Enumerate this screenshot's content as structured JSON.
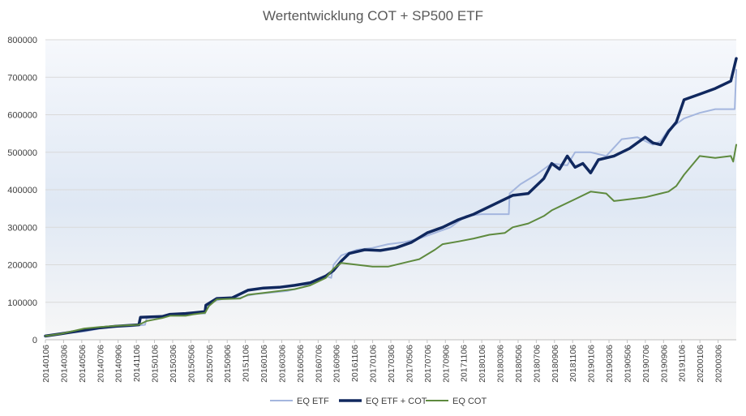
{
  "chart_data": {
    "type": "line",
    "title": "Wertentwicklung COT + SP500 ETF",
    "xlabel": "",
    "ylabel": "",
    "ylim": [
      0,
      800000
    ],
    "yticks": [
      "0",
      "100000",
      "200000",
      "300000",
      "400000",
      "500000",
      "600000",
      "700000",
      "800000"
    ],
    "xticks": [
      "20140106",
      "20140306",
      "20140506",
      "20140706",
      "20140906",
      "20141106",
      "20150106",
      "20150306",
      "20150506",
      "20150706",
      "20150906",
      "20151106",
      "20160106",
      "20160306",
      "20160506",
      "20160706",
      "20160906",
      "20161106",
      "20170106",
      "20170306",
      "20170506",
      "20170706",
      "20170906",
      "20171106",
      "20180106",
      "20180306",
      "20180506",
      "20180706",
      "20180906",
      "20181106",
      "20190106",
      "20190306",
      "20190506",
      "20190706",
      "20190906",
      "20191106",
      "20200106",
      "20200306"
    ],
    "grid": true,
    "legend": "bottom",
    "series": [
      {
        "name": "EQ ETF",
        "color": "#a4b6de",
        "width": 2,
        "points": [
          [
            0,
            10000
          ],
          [
            2,
            16000
          ],
          [
            5,
            22000
          ],
          [
            7,
            30000
          ],
          [
            9,
            34000
          ],
          [
            11,
            36000
          ],
          [
            12.8,
            40000
          ],
          [
            13,
            58000
          ],
          [
            15,
            62000
          ],
          [
            16,
            66000
          ],
          [
            18,
            68000
          ],
          [
            19,
            70000
          ],
          [
            20.5,
            70000
          ],
          [
            20.6,
            90000
          ],
          [
            22,
            105000
          ],
          [
            23,
            110000
          ],
          [
            25,
            112000
          ],
          [
            26,
            118000
          ],
          [
            27,
            122000
          ],
          [
            29,
            126000
          ],
          [
            31,
            130000
          ],
          [
            32,
            135000
          ],
          [
            33,
            140000
          ],
          [
            34,
            150000
          ],
          [
            35,
            160000
          ],
          [
            36,
            170000
          ],
          [
            36.7,
            165000
          ],
          [
            37,
            200000
          ],
          [
            38,
            225000
          ],
          [
            40,
            240000
          ],
          [
            42,
            245000
          ],
          [
            44,
            255000
          ],
          [
            46,
            260000
          ],
          [
            48,
            270000
          ],
          [
            50,
            285000
          ],
          [
            52,
            300000
          ],
          [
            53,
            315000
          ],
          [
            54,
            330000
          ],
          [
            56,
            335000
          ],
          [
            58,
            335000
          ],
          [
            59.5,
            335000
          ],
          [
            59.6,
            390000
          ],
          [
            61,
            415000
          ],
          [
            63,
            440000
          ],
          [
            65,
            470000
          ],
          [
            67,
            465000
          ],
          [
            68,
            500000
          ],
          [
            70,
            500000
          ],
          [
            72,
            490000
          ],
          [
            74,
            535000
          ],
          [
            76,
            540000
          ],
          [
            78,
            520000
          ],
          [
            79,
            530000
          ],
          [
            80,
            560000
          ],
          [
            82,
            590000
          ],
          [
            84,
            605000
          ],
          [
            86,
            615000
          ],
          [
            88,
            615000
          ],
          [
            88.5,
            615000
          ],
          [
            88.7,
            720000
          ]
        ]
      },
      {
        "name": "EQ ETF + COT",
        "color": "#10285e",
        "width": 3.5,
        "points": [
          [
            0,
            10000
          ],
          [
            2,
            16000
          ],
          [
            5,
            26000
          ],
          [
            7,
            32000
          ],
          [
            9,
            36000
          ],
          [
            12,
            40000
          ],
          [
            12.2,
            60000
          ],
          [
            15,
            62000
          ],
          [
            16,
            68000
          ],
          [
            18,
            70000
          ],
          [
            19,
            72000
          ],
          [
            20.5,
            75000
          ],
          [
            20.6,
            92000
          ],
          [
            22,
            110000
          ],
          [
            24,
            112000
          ],
          [
            26,
            132000
          ],
          [
            28,
            138000
          ],
          [
            30,
            140000
          ],
          [
            32,
            145000
          ],
          [
            34,
            152000
          ],
          [
            36,
            170000
          ],
          [
            37,
            185000
          ],
          [
            38,
            210000
          ],
          [
            39,
            230000
          ],
          [
            41,
            240000
          ],
          [
            43,
            238000
          ],
          [
            45,
            245000
          ],
          [
            47,
            260000
          ],
          [
            49,
            285000
          ],
          [
            51,
            300000
          ],
          [
            53,
            320000
          ],
          [
            55,
            335000
          ],
          [
            57,
            355000
          ],
          [
            59,
            375000
          ],
          [
            60,
            385000
          ],
          [
            62,
            390000
          ],
          [
            64,
            430000
          ],
          [
            65,
            470000
          ],
          [
            66,
            455000
          ],
          [
            67,
            490000
          ],
          [
            68,
            460000
          ],
          [
            69,
            470000
          ],
          [
            70,
            445000
          ],
          [
            71,
            480000
          ],
          [
            73,
            490000
          ],
          [
            75,
            510000
          ],
          [
            77,
            540000
          ],
          [
            78,
            525000
          ],
          [
            79,
            520000
          ],
          [
            80,
            555000
          ],
          [
            81,
            580000
          ],
          [
            82,
            640000
          ],
          [
            84,
            655000
          ],
          [
            86,
            670000
          ],
          [
            88,
            690000
          ],
          [
            88.7,
            750000
          ]
        ]
      },
      {
        "name": "EQ COT",
        "color": "#5e8a3e",
        "width": 2,
        "points": [
          [
            0,
            10000
          ],
          [
            2,
            16000
          ],
          [
            5,
            30000
          ],
          [
            7,
            34000
          ],
          [
            9,
            37000
          ],
          [
            12,
            40000
          ],
          [
            13,
            50000
          ],
          [
            15,
            58000
          ],
          [
            16,
            64000
          ],
          [
            18,
            64000
          ],
          [
            19,
            68000
          ],
          [
            20.5,
            72000
          ],
          [
            21,
            90000
          ],
          [
            22,
            108000
          ],
          [
            25,
            110000
          ],
          [
            26,
            120000
          ],
          [
            28,
            125000
          ],
          [
            30,
            130000
          ],
          [
            32,
            135000
          ],
          [
            34,
            145000
          ],
          [
            36,
            165000
          ],
          [
            37,
            190000
          ],
          [
            38,
            205000
          ],
          [
            40,
            200000
          ],
          [
            42,
            195000
          ],
          [
            44,
            195000
          ],
          [
            46,
            205000
          ],
          [
            48,
            215000
          ],
          [
            50,
            240000
          ],
          [
            51,
            255000
          ],
          [
            53,
            262000
          ],
          [
            55,
            270000
          ],
          [
            57,
            280000
          ],
          [
            59,
            285000
          ],
          [
            60,
            300000
          ],
          [
            62,
            310000
          ],
          [
            64,
            330000
          ],
          [
            65,
            345000
          ],
          [
            66,
            355000
          ],
          [
            68,
            375000
          ],
          [
            70,
            395000
          ],
          [
            72,
            390000
          ],
          [
            73,
            370000
          ],
          [
            75,
            375000
          ],
          [
            77,
            380000
          ],
          [
            79,
            390000
          ],
          [
            80,
            395000
          ],
          [
            81,
            410000
          ],
          [
            82,
            440000
          ],
          [
            84,
            490000
          ],
          [
            86,
            485000
          ],
          [
            88,
            490000
          ],
          [
            88.3,
            475000
          ],
          [
            88.7,
            520000
          ]
        ]
      }
    ]
  }
}
